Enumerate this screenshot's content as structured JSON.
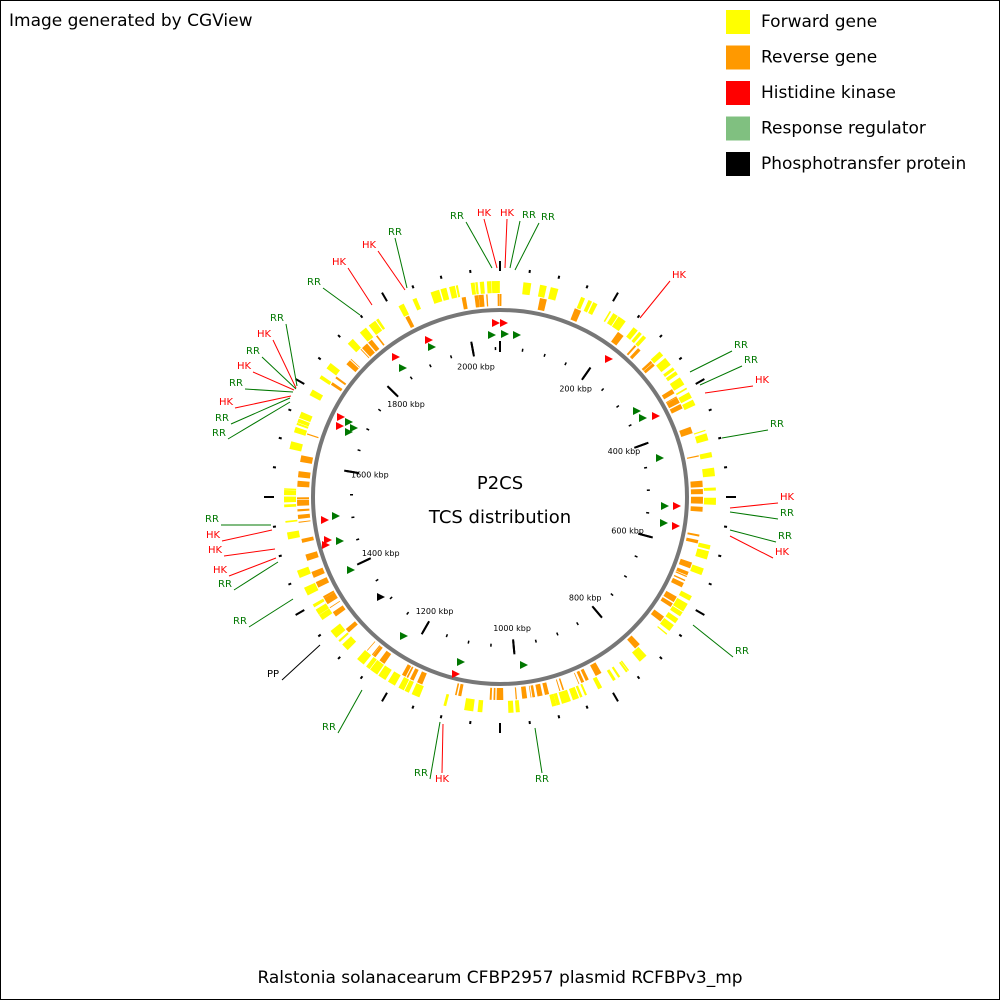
{
  "header": {
    "credit": "Image generated by CGView"
  },
  "legend": [
    {
      "label": "Forward gene",
      "color": "#ffff00"
    },
    {
      "label": "Reverse gene",
      "color": "#ff9900"
    },
    {
      "label": "Histidine kinase",
      "color": "#ff0000"
    },
    {
      "label": "Response regulator",
      "color": "#80c080"
    },
    {
      "label": "Phosphotransfer protein",
      "color": "#000000"
    }
  ],
  "center": {
    "line1": "P2CS",
    "line2": "TCS distribution"
  },
  "ticks": [
    {
      "value": 200,
      "label": "200 kbp"
    },
    {
      "value": 400,
      "label": "400 kbp"
    },
    {
      "value": 600,
      "label": "600 kbp"
    },
    {
      "value": 800,
      "label": "800 kbp"
    },
    {
      "value": 1000,
      "label": "1000 kbp"
    },
    {
      "value": 1200,
      "label": "1200 kbp"
    },
    {
      "value": 1400,
      "label": "1400 kbp"
    },
    {
      "value": 1600,
      "label": "1600 kbp"
    },
    {
      "value": 1800,
      "label": "1800 kbp"
    },
    {
      "value": 2000,
      "label": "2000 kbp"
    }
  ],
  "callouts": [
    "RR",
    "HK",
    "HK",
    "RR",
    "RR",
    "HK",
    "RR",
    "RR",
    "HK",
    "RR",
    "HK",
    "RR",
    "RR",
    "HK",
    "RR",
    "RR",
    "HK",
    "RR",
    "RR",
    "PP",
    "RR",
    "RR",
    "HK",
    "HK",
    "HK",
    "RR",
    "RR",
    "RR",
    "HK",
    "RR",
    "HK",
    "RR",
    "HK",
    "RR",
    "RR",
    "HK",
    "HK",
    "RR"
  ],
  "footer": {
    "caption": "Ralstonia solanacearum CFBP2957 plasmid RCFBPv3_mp"
  }
}
